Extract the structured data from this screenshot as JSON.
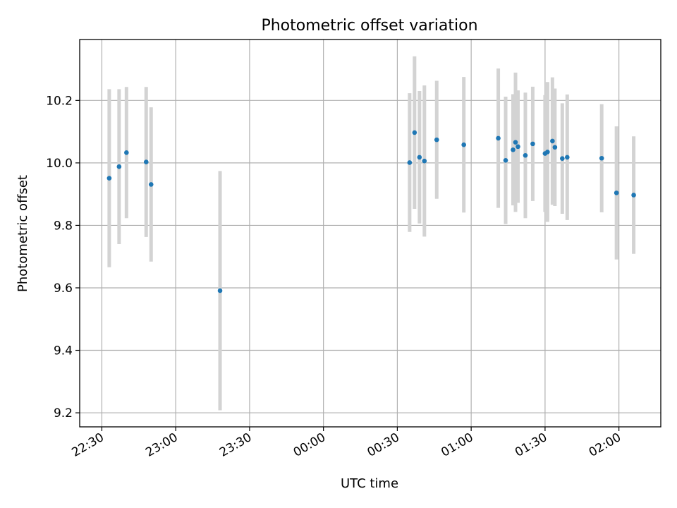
{
  "chart_data": {
    "type": "scatter",
    "title": "Photometric offset variation",
    "xlabel": "UTC time",
    "ylabel": "Photometric offset",
    "grid": true,
    "x_unit": "UTC time (hh:mm), crossing midnight",
    "x_ticks": [
      "22:30",
      "23:00",
      "23:30",
      "00:00",
      "00:30",
      "01:00",
      "01:30",
      "02:00"
    ],
    "x_range": [
      "22:21",
      "02:17"
    ],
    "y_ticks": [
      "9.2",
      "9.4",
      "9.6",
      "9.8",
      "10.0",
      "10.2"
    ],
    "ylim": [
      9.155,
      10.395
    ],
    "colors": {
      "marker": "#1f77b4",
      "errorbar": "#d3d3d3",
      "grid": "#b0b0b0"
    },
    "points": [
      {
        "x": "22:33",
        "y": 9.951,
        "yerr": 0.285
      },
      {
        "x": "22:37",
        "y": 9.988,
        "yerr": 0.248
      },
      {
        "x": "22:40",
        "y": 10.033,
        "yerr": 0.21
      },
      {
        "x": "22:48",
        "y": 10.003,
        "yerr": 0.24
      },
      {
        "x": "22:50",
        "y": 9.931,
        "yerr": 0.247
      },
      {
        "x": "23:18",
        "y": 9.591,
        "yerr": 0.383
      },
      {
        "x": "00:35",
        "y": 10.001,
        "yerr": 0.222
      },
      {
        "x": "00:37",
        "y": 10.097,
        "yerr": 0.244
      },
      {
        "x": "00:39",
        "y": 10.018,
        "yerr": 0.212
      },
      {
        "x": "00:41",
        "y": 10.006,
        "yerr": 0.242
      },
      {
        "x": "00:46",
        "y": 10.074,
        "yerr": 0.189
      },
      {
        "x": "00:57",
        "y": 10.058,
        "yerr": 0.217
      },
      {
        "x": "01:11",
        "y": 10.079,
        "yerr": 0.223
      },
      {
        "x": "01:14",
        "y": 10.008,
        "yerr": 0.204
      },
      {
        "x": "01:17",
        "y": 10.042,
        "yerr": 0.178
      },
      {
        "x": "01:18",
        "y": 10.066,
        "yerr": 0.223
      },
      {
        "x": "01:19",
        "y": 10.052,
        "yerr": 0.18
      },
      {
        "x": "01:22",
        "y": 10.024,
        "yerr": 0.201
      },
      {
        "x": "01:25",
        "y": 10.061,
        "yerr": 0.183
      },
      {
        "x": "01:30",
        "y": 10.03,
        "yerr": 0.187
      },
      {
        "x": "01:31",
        "y": 10.035,
        "yerr": 0.224
      },
      {
        "x": "01:33",
        "y": 10.07,
        "yerr": 0.204
      },
      {
        "x": "01:34",
        "y": 10.05,
        "yerr": 0.188
      },
      {
        "x": "01:37",
        "y": 10.014,
        "yerr": 0.177
      },
      {
        "x": "01:39",
        "y": 10.018,
        "yerr": 0.201
      },
      {
        "x": "01:53",
        "y": 10.015,
        "yerr": 0.173
      },
      {
        "x": "01:59",
        "y": 9.904,
        "yerr": 0.213
      },
      {
        "x": "02:06",
        "y": 9.897,
        "yerr": 0.188
      }
    ]
  }
}
